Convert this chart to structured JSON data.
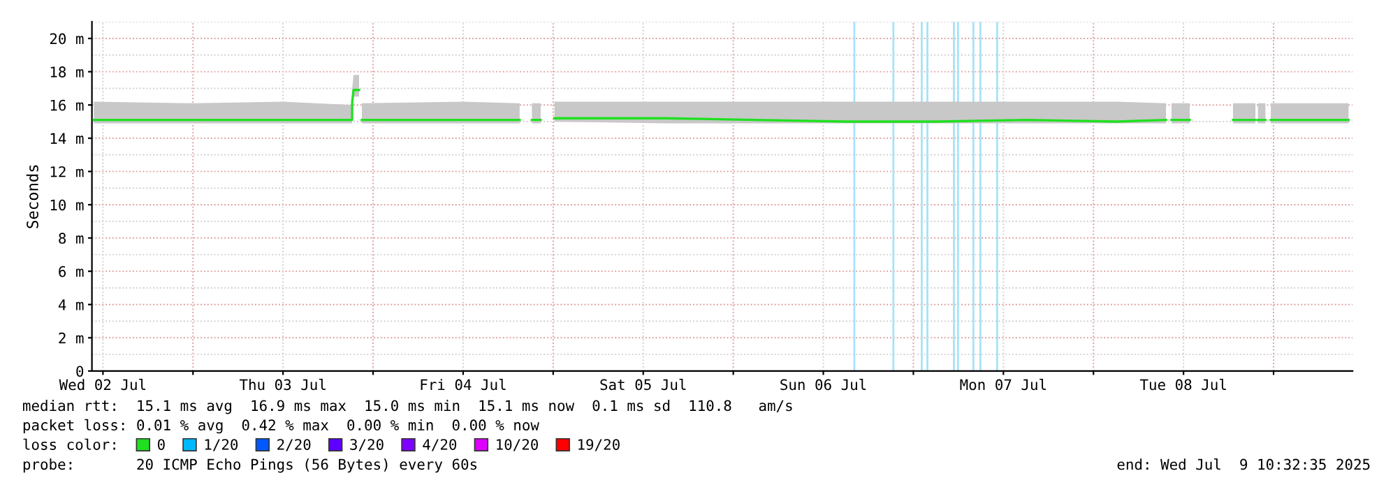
{
  "chart_data": {
    "type": "line",
    "ylabel": "Seconds",
    "xlim": [
      "2025-07-02T10:32",
      "2025-07-09T10:32"
    ],
    "xticks": [
      {
        "value": "2025-07-02T12:00",
        "label": "Wed 02 Jul"
      },
      {
        "value": "2025-07-03T12:00",
        "label": "Thu 03 Jul"
      },
      {
        "value": "2025-07-04T12:00",
        "label": "Fri 04 Jul"
      },
      {
        "value": "2025-07-05T12:00",
        "label": "Sat 05 Jul"
      },
      {
        "value": "2025-07-06T12:00",
        "label": "Sun 06 Jul"
      },
      {
        "value": "2025-07-07T12:00",
        "label": "Mon 07 Jul"
      },
      {
        "value": "2025-07-08T12:00",
        "label": "Tue 08 Jul"
      },
      {
        "value": "2025-07-03T00:00",
        "label": null
      },
      {
        "value": "2025-07-04T00:00",
        "label": null
      },
      {
        "value": "2025-07-05T00:00",
        "label": null
      },
      {
        "value": "2025-07-06T00:00",
        "label": null
      },
      {
        "value": "2025-07-07T00:00",
        "label": null
      },
      {
        "value": "2025-07-08T00:00",
        "label": null
      },
      {
        "value": "2025-07-09T00:00",
        "label": null
      }
    ],
    "ylim": [
      0,
      21
    ],
    "yticks": [
      0,
      {
        "value": 2,
        "label": "2 m"
      },
      {
        "value": 4,
        "label": "4 m"
      },
      {
        "value": 6,
        "label": "6 m"
      },
      {
        "value": 8,
        "label": "8 m"
      },
      {
        "value": 10,
        "label": "10 m"
      },
      {
        "value": 12,
        "label": "12 m"
      },
      {
        "value": 14,
        "label": "14 m"
      },
      {
        "value": 16,
        "label": "16 m"
      },
      {
        "value": 18,
        "label": "18 m"
      },
      {
        "value": 20,
        "label": "20 m"
      }
    ],
    "grid": true,
    "marker": "none",
    "line_style": "solid",
    "legend": "bottom",
    "legend_title": "loss color:",
    "x": [
      "2025-07-02T10:47",
      "2025-07-03T00:00",
      "2025-07-03T12:00",
      "2025-07-03T21:12",
      "2025-07-03T21:13",
      "2025-07-03T21:24",
      "2025-07-03T22:08",
      "2025-07-03T22:20",
      "2025-07-03T22:30",
      "2025-07-04T12:00",
      "2025-07-04T19:32",
      "2025-07-04T20:00",
      "2025-07-04T21:10",
      "2025-07-04T22:20",
      "2025-07-04T23:00",
      "2025-07-05T00:10",
      "2025-07-05T15:00",
      "2025-07-06T03:00",
      "2025-07-06T15:00",
      "2025-07-07T03:00",
      "2025-07-07T15:00",
      "2025-07-08T03:00",
      "2025-07-08T09:40",
      "2025-07-08T10:00",
      "2025-07-08T10:24",
      "2025-07-08T12:50",
      "2025-07-08T15:00",
      "2025-07-08T18:36",
      "2025-07-08T21:35",
      "2025-07-08T21:45",
      "2025-07-08T21:55",
      "2025-07-08T22:55",
      "2025-07-08T23:10",
      "2025-07-08T23:38",
      "2025-07-09T10:00"
    ],
    "series": [
      {
        "name": "0",
        "color": "#20e020",
        "values": [
          15.1,
          15.1,
          15.1,
          15.1,
          16.2,
          16.9,
          16.9,
          null,
          15.1,
          15.1,
          15.1,
          null,
          15.1,
          15.1,
          null,
          15.2,
          15.2,
          15.1,
          15.0,
          15.0,
          15.1,
          15.0,
          15.1,
          null,
          15.1,
          15.1,
          null,
          15.1,
          15.1,
          null,
          15.1,
          15.1,
          null,
          15.1,
          15.1
        ],
        "lower": [
          14.9,
          14.9,
          14.9,
          14.9,
          16.0,
          16.5,
          16.5,
          null,
          14.9,
          14.9,
          14.9,
          null,
          14.9,
          14.9,
          null,
          15.0,
          14.9,
          14.9,
          14.9,
          14.9,
          14.9,
          14.9,
          14.9,
          null,
          14.9,
          14.9,
          null,
          14.9,
          14.9,
          null,
          14.9,
          14.9,
          null,
          14.9,
          14.9
        ],
        "upper": [
          16.2,
          16.1,
          16.2,
          16.0,
          17.0,
          17.8,
          17.8,
          null,
          16.1,
          16.2,
          16.1,
          null,
          16.1,
          16.1,
          null,
          16.2,
          16.2,
          16.2,
          16.2,
          16.2,
          16.2,
          16.2,
          16.1,
          null,
          16.1,
          16.1,
          null,
          16.1,
          16.1,
          null,
          16.1,
          16.1,
          null,
          16.1,
          16.1
        ]
      },
      {
        "name": "1/20",
        "color": "#00b8ff",
        "values": [
          null,
          null,
          null,
          null,
          null,
          null,
          null,
          null,
          null,
          null,
          null,
          null,
          null,
          null,
          null,
          null,
          null,
          null,
          null,
          null,
          null,
          null,
          null,
          null,
          null,
          null,
          null,
          null,
          null,
          null,
          null,
          null,
          null,
          null,
          null
        ]
      },
      {
        "name": "2/20",
        "color": "#0059ff",
        "values": [
          null,
          null,
          null,
          null,
          null,
          null,
          null,
          null,
          null,
          null,
          null,
          null,
          null,
          null,
          null,
          null,
          null,
          null,
          null,
          null,
          null,
          null,
          null,
          null,
          null,
          null,
          null,
          null,
          null,
          null,
          null,
          null,
          null,
          null,
          null
        ]
      },
      {
        "name": "3/20",
        "color": "#5e00ff",
        "values": [
          null,
          null,
          null,
          null,
          null,
          null,
          null,
          null,
          null,
          null,
          null,
          null,
          null,
          null,
          null,
          null,
          null,
          null,
          null,
          null,
          null,
          null,
          null,
          null,
          null,
          null,
          null,
          null,
          null,
          null,
          null,
          null,
          null,
          null,
          null
        ]
      },
      {
        "name": "4/20",
        "color": "#7e00ff",
        "values": [
          null,
          null,
          null,
          null,
          null,
          null,
          null,
          null,
          null,
          null,
          null,
          null,
          null,
          null,
          null,
          null,
          null,
          null,
          null,
          null,
          null,
          null,
          null,
          null,
          null,
          null,
          null,
          null,
          null,
          null,
          null,
          null,
          null,
          null,
          null
        ]
      },
      {
        "name": "10/20",
        "color": "#dd00ff",
        "values": [
          null,
          null,
          null,
          null,
          null,
          null,
          null,
          null,
          null,
          null,
          null,
          null,
          null,
          null,
          null,
          null,
          null,
          null,
          null,
          null,
          null,
          null,
          null,
          null,
          null,
          null,
          null,
          null,
          null,
          null,
          null,
          null,
          null,
          null,
          null
        ]
      },
      {
        "name": "19/20",
        "color": "#ff0000",
        "values": [
          null,
          null,
          null,
          null,
          null,
          null,
          null,
          null,
          null,
          null,
          null,
          null,
          null,
          null,
          null,
          null,
          null,
          null,
          null,
          null,
          null,
          null,
          null,
          null,
          null,
          null,
          null,
          null,
          null,
          null,
          null,
          null,
          null,
          null,
          null
        ]
      }
    ],
    "ref_lines": [
      {
        "axis": "x",
        "value": "2025-07-06T16:08",
        "label": null,
        "color": "#a8e2f8"
      },
      {
        "axis": "x",
        "value": "2025-07-06T21:20",
        "label": null,
        "color": "#a8e2f8"
      },
      {
        "axis": "x",
        "value": "2025-07-07T01:07",
        "label": null,
        "color": "#a8e2f8"
      },
      {
        "axis": "x",
        "value": "2025-07-07T01:52",
        "label": null,
        "color": "#a8e2f8"
      },
      {
        "axis": "x",
        "value": "2025-07-07T05:24",
        "label": null,
        "color": "#a8e2f8"
      },
      {
        "axis": "x",
        "value": "2025-07-07T05:57",
        "label": null,
        "color": "#a8e2f8"
      },
      {
        "axis": "x",
        "value": "2025-07-07T08:00",
        "label": null,
        "color": "#a8e2f8"
      },
      {
        "axis": "x",
        "value": "2025-07-07T08:56",
        "label": null,
        "color": "#a8e2f8"
      },
      {
        "axis": "x",
        "value": "2025-07-07T11:10",
        "label": null,
        "color": "#a8e2f8"
      }
    ],
    "annotations": [
      "median rtt:  15.1 ms avg  16.9 ms max  15.0 ms min  15.1 ms now  0.1 ms sd  110.8   am/s",
      "packet loss: 0.01 % avg  0.42 % max  0.00 % min  0.00 % now",
      "probe:       20 ICMP Echo Pings (56 Bytes) every 60s",
      "end: Wed Jul  9 10:32:35 2025"
    ]
  }
}
